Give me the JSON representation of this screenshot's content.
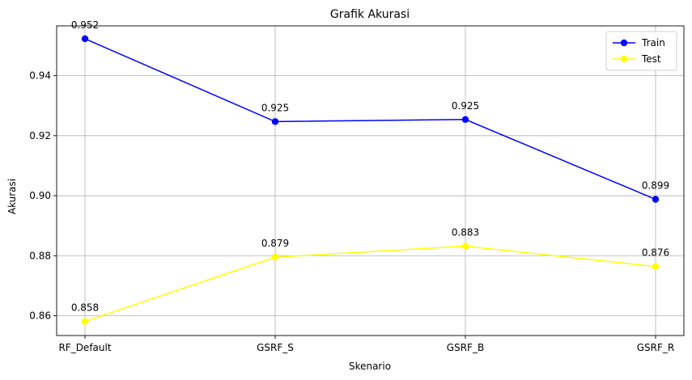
{
  "chart_data": {
    "type": "line",
    "title": "Grafik Akurasi",
    "xlabel": "Skenario",
    "ylabel": "Akurasi",
    "categories": [
      "RF_Default",
      "GSRF_S",
      "GSRF_B",
      "GSRF_R"
    ],
    "series": [
      {
        "name": "Train",
        "color": "#0000ff",
        "values": [
          0.9523,
          0.9247,
          0.9254,
          0.8988
        ],
        "labels": [
          "0.952",
          "0.925",
          "0.925",
          "0.899"
        ]
      },
      {
        "name": "Test",
        "color": "#ffff00",
        "values": [
          0.8581,
          0.8795,
          0.8832,
          0.8764
        ],
        "labels": [
          "0.858",
          "0.879",
          "0.883",
          "0.876"
        ]
      }
    ],
    "ylim": [
      0.8534,
      0.9566
    ],
    "yticks": [
      0.86,
      0.88,
      0.9,
      0.92,
      0.94
    ],
    "ytick_labels": [
      "0.86",
      "0.88",
      "0.90",
      "0.92",
      "0.94"
    ],
    "grid": true,
    "legend_position": "top-right"
  }
}
